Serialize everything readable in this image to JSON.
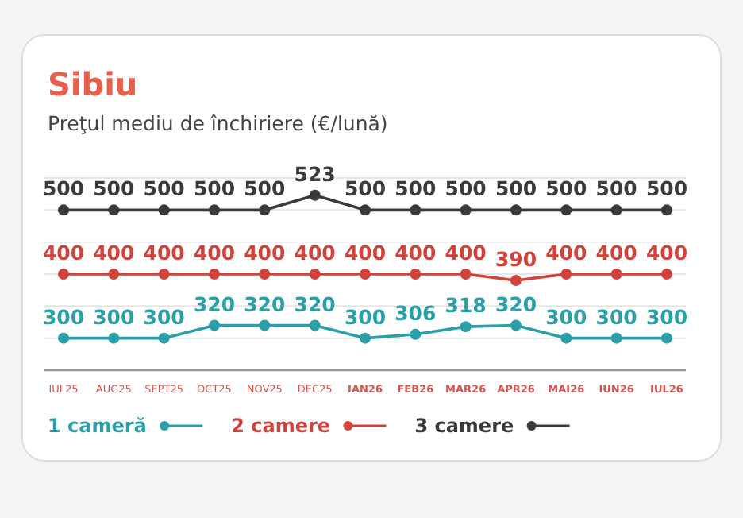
{
  "chart_data": {
    "type": "line",
    "title": "Sibiu",
    "subtitle": "Preţul mediu de închiriere (€/lună)",
    "categories": [
      "IUL25",
      "AUG25",
      "SEPT25",
      "OCT25",
      "NOV25",
      "DEC25",
      "IAN26",
      "FEB26",
      "MAR26",
      "APR26",
      "MAI26",
      "IUN26",
      "IUL26"
    ],
    "series": [
      {
        "name": "1 cameră",
        "color": "#2a9fa8",
        "values": [
          300,
          300,
          300,
          320,
          320,
          320,
          300,
          306,
          318,
          320,
          300,
          300,
          300
        ]
      },
      {
        "name": "2 camere",
        "color": "#d0433a",
        "values": [
          400,
          400,
          400,
          400,
          400,
          400,
          400,
          400,
          400,
          390,
          400,
          400,
          400
        ]
      },
      {
        "name": "3 camere",
        "color": "#3a3a3a",
        "values": [
          500,
          500,
          500,
          500,
          500,
          523,
          500,
          500,
          500,
          500,
          500,
          500,
          500
        ]
      }
    ],
    "ylim": [
      250,
      550
    ],
    "yticks": [
      {
        "value": 300,
        "label": null
      },
      {
        "value": 350,
        "label": null
      },
      {
        "value": 400,
        "label": null
      },
      {
        "value": 450,
        "label": null
      },
      {
        "value": 500,
        "label": null
      },
      {
        "value": 550,
        "label": null
      }
    ],
    "grid": "y",
    "data_labels": true,
    "marker": "circle",
    "line_style": "solid",
    "legend": "bottom left"
  }
}
